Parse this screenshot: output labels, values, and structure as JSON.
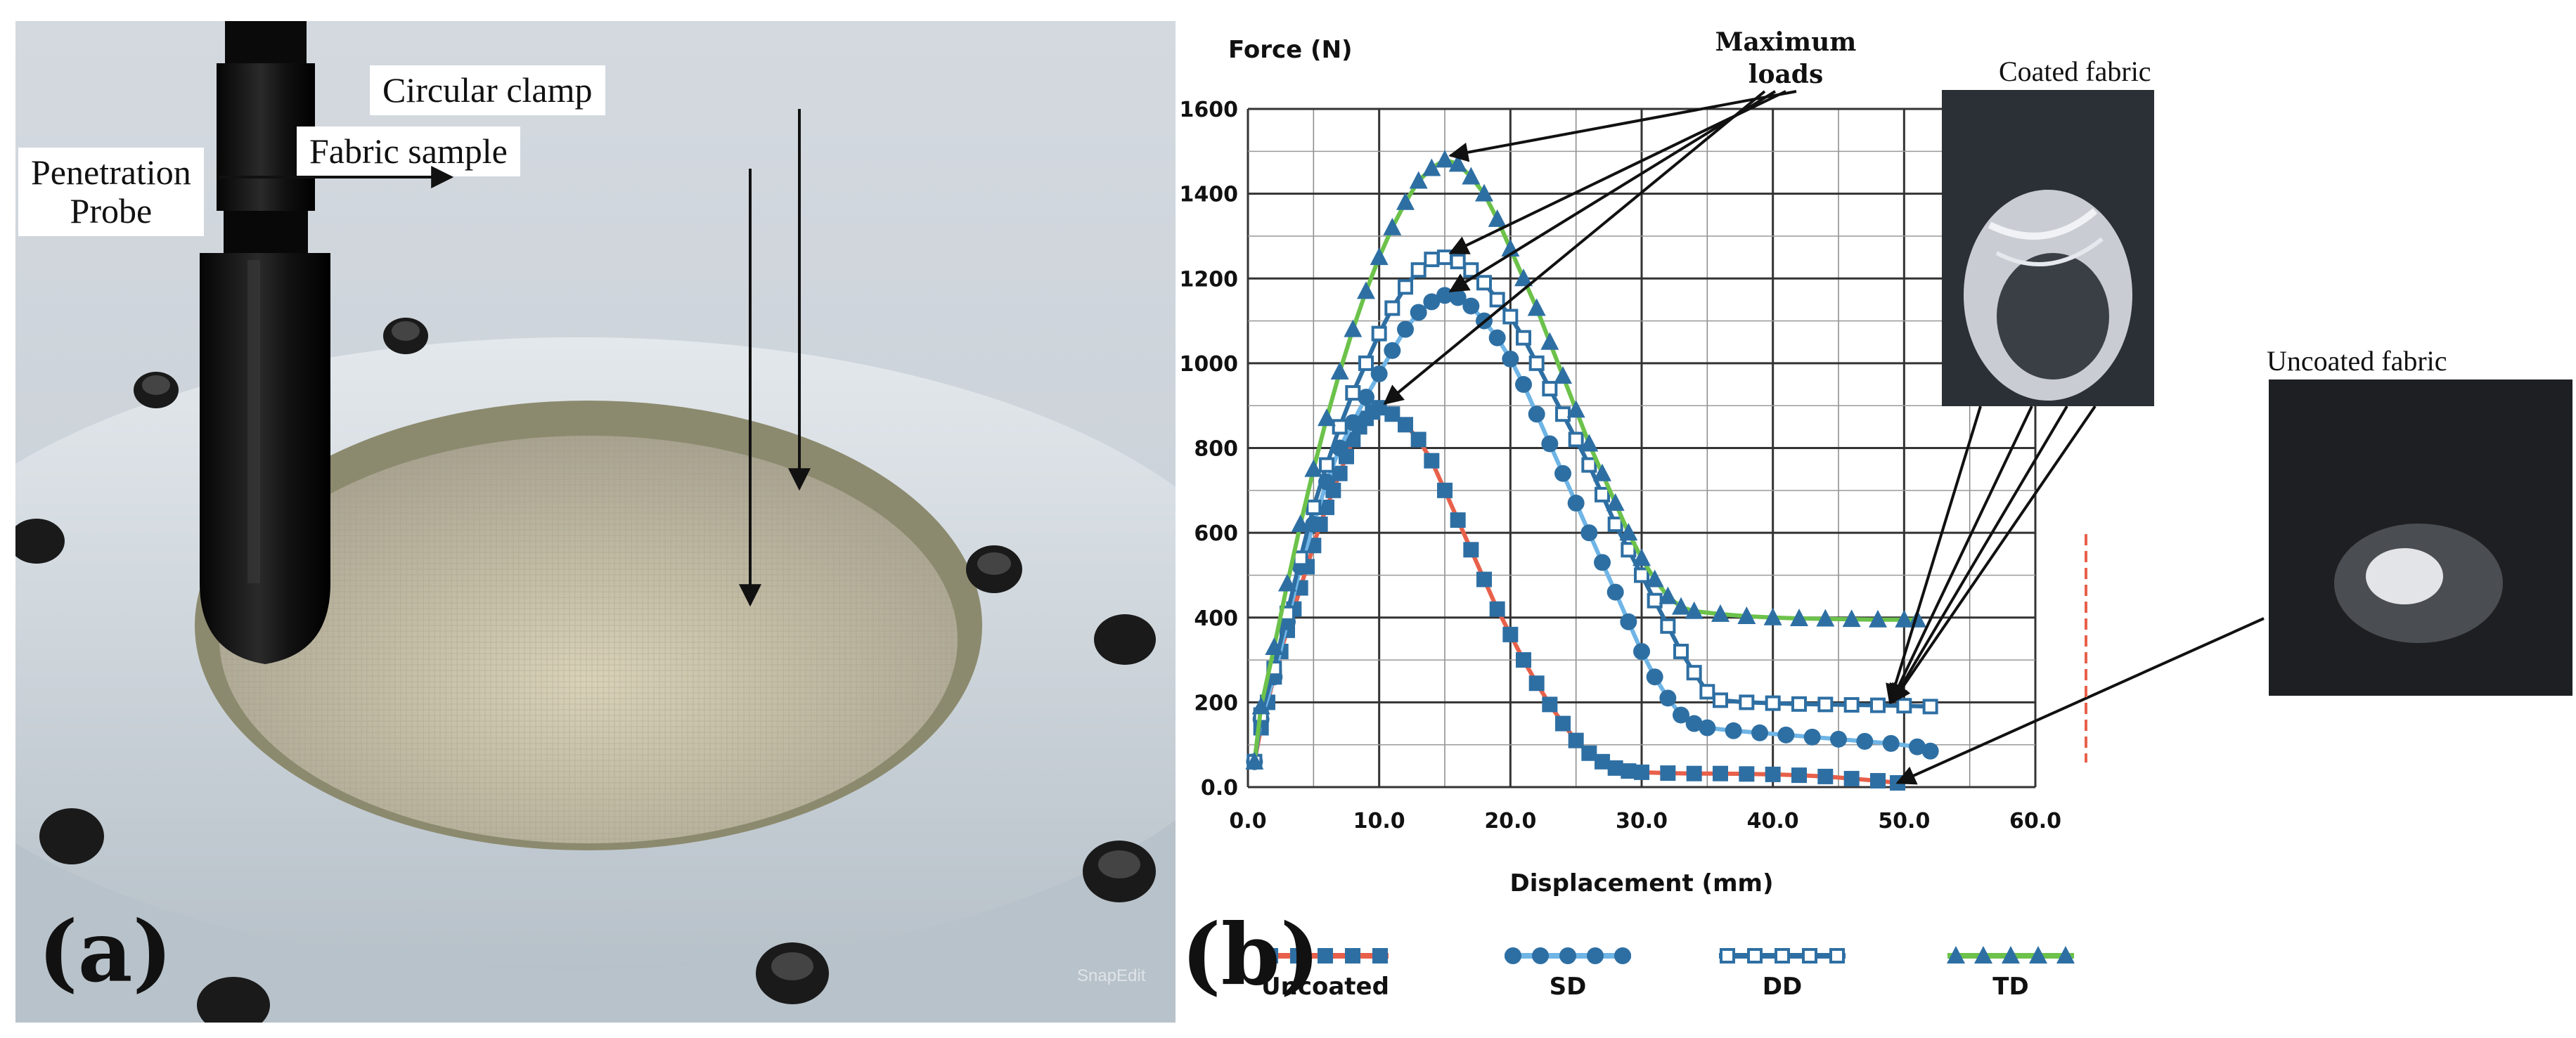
{
  "panel_a": {
    "label": "(a)",
    "callouts": {
      "circular_clamp": "Circular clamp",
      "fabric_sample": "Fabric sample",
      "penetration_probe_line1": "Penetration",
      "penetration_probe_line2": "Probe"
    },
    "watermark": "SnapEdit"
  },
  "panel_b": {
    "label": "(b)",
    "annotation_line1": "Maximum",
    "annotation_line2": "loads",
    "inset_coated_title": "Coated fabric",
    "inset_uncoated_title": "Uncoated fabric"
  },
  "chart_data": {
    "type": "line",
    "title": "",
    "xlabel": "Displacement (mm)",
    "ylabel": "Force (N)",
    "xlim": [
      0,
      60
    ],
    "ylim": [
      0,
      1600
    ],
    "x_tick_labels": [
      "0.0",
      "10.0",
      "20.0",
      "30.0",
      "40.0",
      "50.0",
      "60.0"
    ],
    "y_tick_labels": [
      "0.0",
      "200",
      "400",
      "600",
      "800",
      "1000",
      "1200",
      "1400",
      "1600"
    ],
    "grid": true,
    "legend_position": "bottom",
    "series": [
      {
        "name": "Uncoated",
        "color": "#e8604a",
        "marker_color": "#2e6fa3",
        "marker": "square",
        "points": [
          [
            0.5,
            60
          ],
          [
            1,
            140
          ],
          [
            1.5,
            200
          ],
          [
            2,
            260
          ],
          [
            2.5,
            320
          ],
          [
            3,
            370
          ],
          [
            3.5,
            420
          ],
          [
            4,
            470
          ],
          [
            4.5,
            520
          ],
          [
            5,
            570
          ],
          [
            5.5,
            620
          ],
          [
            6,
            660
          ],
          [
            6.5,
            700
          ],
          [
            7,
            740
          ],
          [
            7.5,
            780
          ],
          [
            8,
            820
          ],
          [
            8.5,
            850
          ],
          [
            9,
            870
          ],
          [
            9.5,
            885
          ],
          [
            10,
            895
          ],
          [
            11,
            880
          ],
          [
            12,
            855
          ],
          [
            13,
            820
          ],
          [
            14,
            770
          ],
          [
            15,
            700
          ],
          [
            16,
            630
          ],
          [
            17,
            560
          ],
          [
            18,
            490
          ],
          [
            19,
            420
          ],
          [
            20,
            360
          ],
          [
            21,
            300
          ],
          [
            22,
            245
          ],
          [
            23,
            195
          ],
          [
            24,
            150
          ],
          [
            25,
            110
          ],
          [
            26,
            80
          ],
          [
            27,
            60
          ],
          [
            28,
            45
          ],
          [
            29,
            38
          ],
          [
            30,
            35
          ],
          [
            32,
            33
          ],
          [
            34,
            32
          ],
          [
            36,
            32
          ],
          [
            38,
            31
          ],
          [
            40,
            30
          ],
          [
            42,
            28
          ],
          [
            44,
            25
          ],
          [
            46,
            20
          ],
          [
            48,
            15
          ],
          [
            49.5,
            10
          ]
        ]
      },
      {
        "name": "SD",
        "color": "#6fb5e6",
        "marker_color": "#2e6fa3",
        "marker": "circle",
        "points": [
          [
            0.5,
            60
          ],
          [
            1,
            160
          ],
          [
            2,
            260
          ],
          [
            3,
            390
          ],
          [
            4,
            520
          ],
          [
            5,
            620
          ],
          [
            6,
            720
          ],
          [
            7,
            800
          ],
          [
            8,
            860
          ],
          [
            9,
            920
          ],
          [
            10,
            975
          ],
          [
            11,
            1030
          ],
          [
            12,
            1080
          ],
          [
            13,
            1120
          ],
          [
            14,
            1145
          ],
          [
            15,
            1160
          ],
          [
            16,
            1155
          ],
          [
            17,
            1135
          ],
          [
            18,
            1100
          ],
          [
            19,
            1060
          ],
          [
            20,
            1010
          ],
          [
            21,
            950
          ],
          [
            22,
            880
          ],
          [
            23,
            810
          ],
          [
            24,
            740
          ],
          [
            25,
            670
          ],
          [
            26,
            600
          ],
          [
            27,
            530
          ],
          [
            28,
            460
          ],
          [
            29,
            390
          ],
          [
            30,
            320
          ],
          [
            31,
            260
          ],
          [
            32,
            210
          ],
          [
            33,
            170
          ],
          [
            34,
            150
          ],
          [
            35,
            140
          ],
          [
            37,
            133
          ],
          [
            39,
            128
          ],
          [
            41,
            123
          ],
          [
            43,
            118
          ],
          [
            45,
            113
          ],
          [
            47,
            108
          ],
          [
            49,
            103
          ],
          [
            51,
            95
          ],
          [
            52,
            85
          ]
        ]
      },
      {
        "name": "DD",
        "color": "#2e6fa3",
        "marker_color": "#2e6fa3",
        "marker": "hollow-square",
        "points": [
          [
            0.5,
            60
          ],
          [
            1,
            170
          ],
          [
            2,
            280
          ],
          [
            3,
            410
          ],
          [
            4,
            540
          ],
          [
            5,
            660
          ],
          [
            6,
            760
          ],
          [
            7,
            850
          ],
          [
            8,
            930
          ],
          [
            9,
            1000
          ],
          [
            10,
            1070
          ],
          [
            11,
            1130
          ],
          [
            12,
            1180
          ],
          [
            13,
            1220
          ],
          [
            14,
            1245
          ],
          [
            15,
            1250
          ],
          [
            16,
            1240
          ],
          [
            17,
            1220
          ],
          [
            18,
            1190
          ],
          [
            19,
            1150
          ],
          [
            20,
            1110
          ],
          [
            21,
            1060
          ],
          [
            22,
            1000
          ],
          [
            23,
            940
          ],
          [
            24,
            880
          ],
          [
            25,
            820
          ],
          [
            26,
            760
          ],
          [
            27,
            690
          ],
          [
            28,
            620
          ],
          [
            29,
            560
          ],
          [
            30,
            500
          ],
          [
            31,
            440
          ],
          [
            32,
            380
          ],
          [
            33,
            320
          ],
          [
            34,
            270
          ],
          [
            35,
            225
          ],
          [
            36,
            205
          ],
          [
            38,
            200
          ],
          [
            40,
            198
          ],
          [
            42,
            196
          ],
          [
            44,
            195
          ],
          [
            46,
            194
          ],
          [
            48,
            193
          ],
          [
            50,
            192
          ],
          [
            52,
            190
          ]
        ]
      },
      {
        "name": "TD",
        "color": "#6cc24a",
        "marker_color": "#2e6fa3",
        "marker": "triangle",
        "points": [
          [
            0.5,
            60
          ],
          [
            1,
            190
          ],
          [
            2,
            330
          ],
          [
            3,
            480
          ],
          [
            4,
            620
          ],
          [
            5,
            750
          ],
          [
            6,
            870
          ],
          [
            7,
            980
          ],
          [
            8,
            1080
          ],
          [
            9,
            1170
          ],
          [
            10,
            1250
          ],
          [
            11,
            1320
          ],
          [
            12,
            1380
          ],
          [
            13,
            1430
          ],
          [
            14,
            1460
          ],
          [
            15,
            1480
          ],
          [
            16,
            1470
          ],
          [
            17,
            1440
          ],
          [
            18,
            1400
          ],
          [
            19,
            1340
          ],
          [
            20,
            1270
          ],
          [
            21,
            1200
          ],
          [
            22,
            1130
          ],
          [
            23,
            1050
          ],
          [
            24,
            970
          ],
          [
            25,
            890
          ],
          [
            26,
            810
          ],
          [
            27,
            740
          ],
          [
            28,
            670
          ],
          [
            29,
            600
          ],
          [
            30,
            540
          ],
          [
            31,
            490
          ],
          [
            32,
            450
          ],
          [
            33,
            425
          ],
          [
            34,
            415
          ],
          [
            36,
            408
          ],
          [
            38,
            403
          ],
          [
            40,
            400
          ],
          [
            42,
            398
          ],
          [
            44,
            397
          ],
          [
            46,
            396
          ],
          [
            48,
            395
          ],
          [
            50,
            395
          ],
          [
            51,
            395
          ]
        ]
      }
    ],
    "annotation": "Maximum loads"
  }
}
